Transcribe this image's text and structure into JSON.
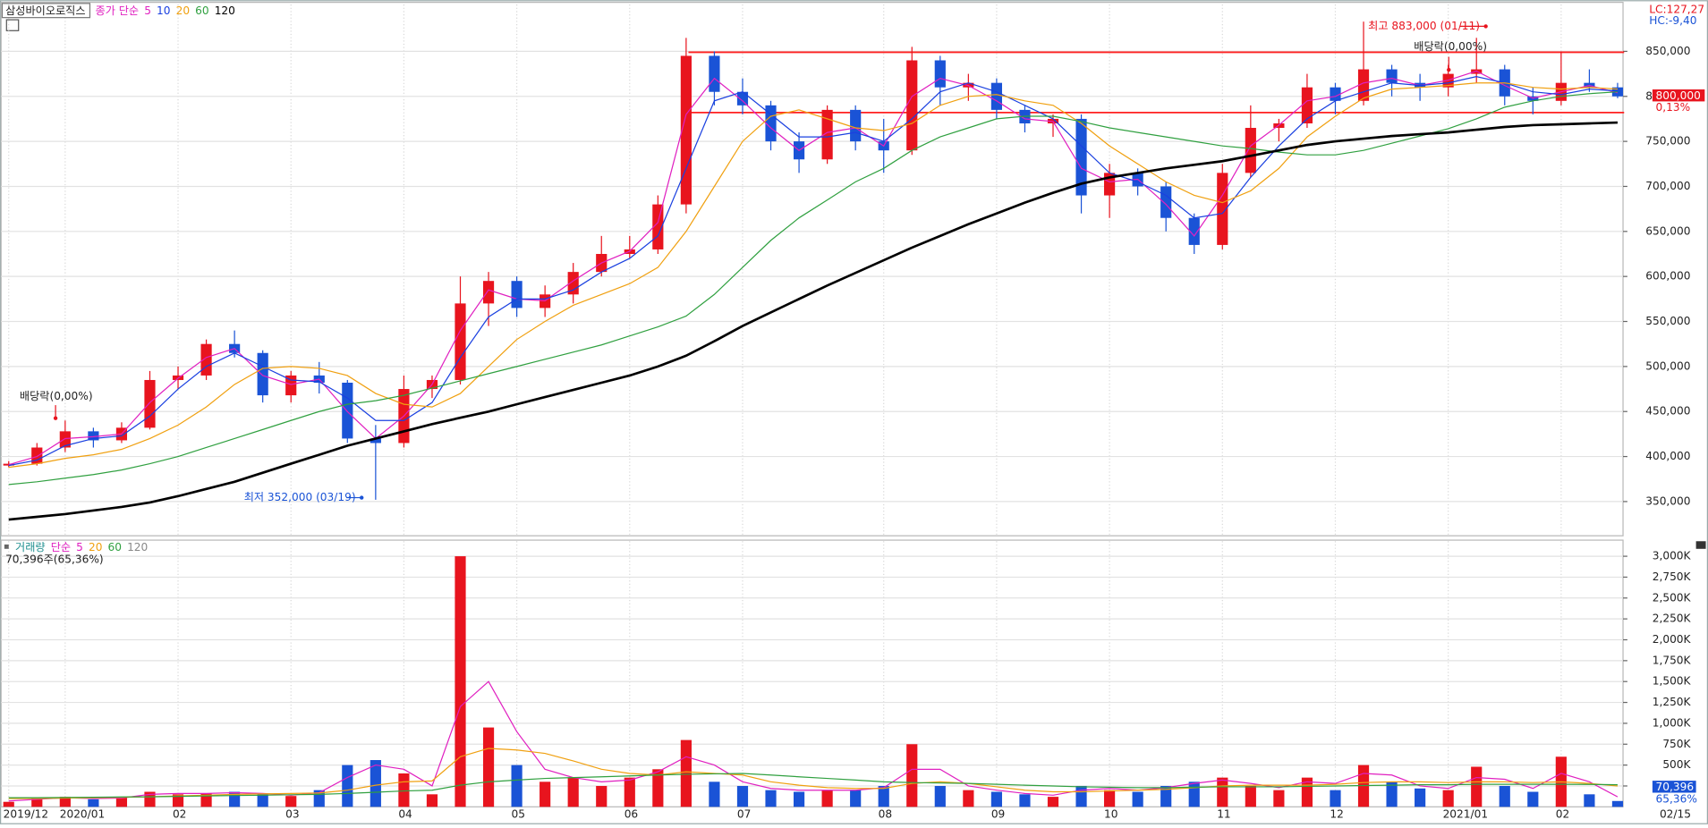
{
  "chart_data": [
    {
      "type": "candlestick",
      "title": "삼성바이오로직스",
      "legend_prefix": "종가 단순",
      "up_color": "#e8141e",
      "down_color": "#1a53d6",
      "open": [
        390000,
        392000,
        410000,
        428000,
        418000,
        432000,
        485000,
        490000,
        525000,
        515000,
        468000,
        490000,
        482000,
        420000,
        415000,
        475000,
        485000,
        570000,
        595000,
        565000,
        580000,
        605000,
        625000,
        630000,
        680000,
        845000,
        805000,
        790000,
        750000,
        730000,
        785000,
        750000,
        740000,
        840000,
        810000,
        815000,
        785000,
        770000,
        775000,
        690000,
        715000,
        700000,
        665000,
        635000,
        715000,
        765000,
        770000,
        810000,
        795000,
        830000,
        815000,
        810000,
        825000,
        830000,
        800000,
        795000,
        815000,
        810000
      ],
      "high": [
        395000,
        415000,
        440000,
        432000,
        438000,
        495000,
        500000,
        530000,
        540000,
        518000,
        495000,
        505000,
        485000,
        435000,
        490000,
        490000,
        600000,
        605000,
        600000,
        590000,
        615000,
        645000,
        645000,
        690000,
        865000,
        850000,
        820000,
        795000,
        760000,
        790000,
        790000,
        775000,
        855000,
        845000,
        825000,
        820000,
        790000,
        780000,
        780000,
        725000,
        720000,
        705000,
        670000,
        725000,
        790000,
        775000,
        825000,
        815000,
        883000,
        835000,
        825000,
        835000,
        865000,
        835000,
        810000,
        850000,
        830000,
        815000
      ],
      "low": [
        388000,
        390000,
        405000,
        410000,
        415000,
        430000,
        475000,
        485000,
        510000,
        460000,
        460000,
        470000,
        415000,
        352000,
        410000,
        465000,
        480000,
        545000,
        555000,
        555000,
        570000,
        600000,
        620000,
        625000,
        670000,
        790000,
        780000,
        740000,
        715000,
        725000,
        740000,
        715000,
        735000,
        790000,
        795000,
        775000,
        760000,
        755000,
        670000,
        665000,
        690000,
        650000,
        625000,
        630000,
        710000,
        750000,
        765000,
        780000,
        790000,
        800000,
        795000,
        800000,
        815000,
        790000,
        780000,
        790000,
        805000,
        798000
      ],
      "close": [
        392000,
        410000,
        428000,
        418000,
        432000,
        485000,
        490000,
        525000,
        515000,
        468000,
        490000,
        482000,
        420000,
        415000,
        475000,
        485000,
        570000,
        595000,
        565000,
        580000,
        605000,
        625000,
        630000,
        680000,
        845000,
        805000,
        790000,
        750000,
        730000,
        785000,
        750000,
        740000,
        840000,
        810000,
        815000,
        785000,
        770000,
        775000,
        690000,
        715000,
        700000,
        665000,
        635000,
        715000,
        765000,
        770000,
        810000,
        795000,
        830000,
        815000,
        810000,
        825000,
        830000,
        800000,
        795000,
        815000,
        810000,
        800000
      ],
      "series": [
        {
          "name": "5",
          "color": "#e020c0",
          "values": [
            391000,
            400000,
            420000,
            422000,
            425000,
            460000,
            487000,
            510000,
            520000,
            490000,
            480000,
            486000,
            450000,
            420000,
            445000,
            480000,
            540000,
            585000,
            575000,
            573000,
            595000,
            615000,
            628000,
            660000,
            780000,
            820000,
            795000,
            765000,
            740000,
            760000,
            765000,
            745000,
            800000,
            820000,
            812000,
            795000,
            775000,
            772000,
            720000,
            705000,
            708000,
            680000,
            645000,
            690000,
            745000,
            768000,
            795000,
            800000,
            815000,
            820000,
            812000,
            818000,
            828000,
            812000,
            798000,
            805000,
            812000,
            804000
          ]
        },
        {
          "name": "10",
          "color": "#1a40e0",
          "values": [
            390000,
            396000,
            412000,
            420000,
            423000,
            445000,
            475000,
            500000,
            515000,
            500000,
            485000,
            483000,
            465000,
            440000,
            440000,
            460000,
            510000,
            555000,
            575000,
            575000,
            585000,
            605000,
            620000,
            645000,
            720000,
            795000,
            805000,
            780000,
            755000,
            755000,
            760000,
            750000,
            775000,
            805000,
            815000,
            805000,
            790000,
            775000,
            745000,
            715000,
            705000,
            690000,
            665000,
            670000,
            710000,
            745000,
            775000,
            795000,
            805000,
            815000,
            812000,
            815000,
            822000,
            815000,
            805000,
            802000,
            808000,
            806000
          ]
        },
        {
          "name": "20",
          "color": "#f0a010",
          "values": [
            388000,
            392000,
            398000,
            402000,
            408000,
            420000,
            435000,
            455000,
            480000,
            498000,
            500000,
            498000,
            490000,
            470000,
            458000,
            455000,
            470000,
            500000,
            530000,
            550000,
            568000,
            580000,
            592000,
            610000,
            650000,
            700000,
            750000,
            778000,
            785000,
            775000,
            765000,
            762000,
            770000,
            790000,
            800000,
            802000,
            795000,
            790000,
            770000,
            745000,
            725000,
            705000,
            690000,
            682000,
            695000,
            720000,
            755000,
            778000,
            798000,
            808000,
            810000,
            812000,
            815000,
            815000,
            810000,
            808000,
            810000,
            808000
          ]
        },
        {
          "name": "60",
          "color": "#30a040",
          "values": [
            369000,
            372000,
            376000,
            380000,
            385000,
            392000,
            400000,
            410000,
            420000,
            430000,
            440000,
            450000,
            458000,
            462000,
            468000,
            476000,
            484000,
            492000,
            500000,
            508000,
            516000,
            524000,
            534000,
            544000,
            556000,
            580000,
            610000,
            640000,
            665000,
            685000,
            705000,
            720000,
            740000,
            755000,
            765000,
            775000,
            778000,
            778000,
            772000,
            765000,
            760000,
            755000,
            750000,
            745000,
            742000,
            738000,
            735000,
            735000,
            740000,
            748000,
            756000,
            764000,
            775000,
            788000,
            795000,
            800000,
            803000,
            805000
          ]
        },
        {
          "name": "120",
          "color": "#000000",
          "values": [
            330000,
            333000,
            336000,
            340000,
            344000,
            349000,
            356000,
            364000,
            372000,
            382000,
            392000,
            402000,
            412000,
            420000,
            428000,
            436000,
            443000,
            450000,
            458000,
            466000,
            474000,
            482000,
            490000,
            500000,
            512000,
            528000,
            545000,
            560000,
            575000,
            590000,
            604000,
            618000,
            632000,
            645000,
            658000,
            670000,
            682000,
            693000,
            703000,
            710000,
            715000,
            720000,
            724000,
            728000,
            734000,
            740000,
            746000,
            750000,
            753000,
            756000,
            758000,
            760000,
            763000,
            766000,
            768000,
            769000,
            770000,
            771000
          ]
        }
      ],
      "hlines": [
        849000,
        782000
      ],
      "hline_color": "#ff2020",
      "ylim": [
        312000,
        902000
      ],
      "yticks": [
        {
          "value": 350000,
          "label": "350,000"
        },
        {
          "value": 400000,
          "label": "400,000"
        },
        {
          "value": 450000,
          "label": "450,000"
        },
        {
          "value": 500000,
          "label": "500,000"
        },
        {
          "value": 550000,
          "label": "550,000"
        },
        {
          "value": 600000,
          "label": "600,000"
        },
        {
          "value": 650000,
          "label": "650,000"
        },
        {
          "value": 700000,
          "label": "700,000"
        },
        {
          "value": 750000,
          "label": "750,000"
        },
        {
          "value": 800000,
          "label": "800,000"
        },
        {
          "value": 850000,
          "label": "850,000"
        }
      ],
      "grid": true,
      "annotations": [
        "배당락(0,00%)",
        "최저 352,000 (03/19)",
        "최고 883,000 (01/11)",
        "배당락(0,00%)"
      ],
      "side_labels": [
        "LC:127,27",
        "HC:-9,40",
        "800,000",
        "0,13%"
      ]
    },
    {
      "type": "bar",
      "legend_prefix": "거래량",
      "legend_label": "단순",
      "legend_extra": "120",
      "info": "70,396주(65,36%)",
      "categories": [
        "2019/12",
        null,
        "2020/01",
        null,
        null,
        null,
        "02",
        null,
        null,
        null,
        "03",
        null,
        null,
        null,
        "04",
        null,
        null,
        null,
        "05",
        null,
        null,
        null,
        "06",
        null,
        null,
        null,
        "07",
        null,
        null,
        null,
        null,
        "08",
        null,
        null,
        null,
        "09",
        null,
        null,
        null,
        "10",
        null,
        null,
        null,
        "11",
        null,
        null,
        null,
        "12",
        null,
        null,
        null,
        "2021/01",
        null,
        null,
        null,
        "02",
        null,
        "02/15"
      ],
      "values": [
        60,
        100,
        120,
        90,
        110,
        180,
        150,
        160,
        180,
        150,
        130,
        200,
        500,
        560,
        400,
        150,
        3000,
        950,
        500,
        300,
        350,
        250,
        350,
        450,
        800,
        300,
        250,
        200,
        180,
        200,
        200,
        250,
        750,
        250,
        200,
        180,
        150,
        120,
        250,
        200,
        180,
        250,
        300,
        350,
        250,
        200,
        350,
        200,
        500,
        300,
        220,
        200,
        480,
        250,
        180,
        600,
        150,
        70
      ],
      "series": [
        {
          "name": "5",
          "color": "#e020c0",
          "values": [
            70,
            90,
            110,
            100,
            105,
            150,
            160,
            160,
            170,
            160,
            140,
            170,
            350,
            500,
            450,
            250,
            1200,
            1500,
            900,
            450,
            350,
            300,
            320,
            420,
            600,
            500,
            300,
            220,
            200,
            200,
            200,
            230,
            450,
            450,
            250,
            200,
            160,
            140,
            200,
            220,
            200,
            230,
            280,
            320,
            280,
            230,
            300,
            280,
            400,
            380,
            250,
            220,
            350,
            330,
            220,
            400,
            300,
            120
          ]
        },
        {
          "name": "20",
          "color": "#f0a010",
          "values": [
            100,
            100,
            105,
            110,
            115,
            120,
            130,
            140,
            150,
            155,
            160,
            165,
            200,
            260,
            300,
            310,
            600,
            700,
            680,
            640,
            550,
            450,
            400,
            380,
            420,
            400,
            380,
            300,
            260,
            230,
            220,
            220,
            280,
            300,
            280,
            240,
            200,
            180,
            180,
            190,
            200,
            210,
            230,
            250,
            260,
            260,
            260,
            270,
            290,
            300,
            300,
            290,
            300,
            300,
            290,
            300,
            280,
            250
          ]
        },
        {
          "name": "60",
          "color": "#30a040",
          "values": [
            110,
            110,
            112,
            115,
            118,
            120,
            125,
            130,
            135,
            140,
            145,
            150,
            160,
            175,
            190,
            200,
            260,
            300,
            320,
            340,
            350,
            360,
            370,
            380,
            390,
            395,
            400,
            380,
            360,
            340,
            320,
            300,
            290,
            285,
            280,
            270,
            260,
            250,
            240,
            235,
            230,
            230,
            235,
            240,
            240,
            240,
            245,
            250,
            255,
            260,
            265,
            265,
            270,
            270,
            270,
            270,
            268,
            265
          ]
        }
      ],
      "ylim": [
        0,
        3180
      ],
      "yticks": [
        {
          "value": 250,
          "label": "250K"
        },
        {
          "value": 500,
          "label": "500K"
        },
        {
          "value": 750,
          "label": "750K"
        },
        {
          "value": 1000,
          "label": "1,000K"
        },
        {
          "value": 1250,
          "label": "1,250K"
        },
        {
          "value": 1500,
          "label": "1,500K"
        },
        {
          "value": 1750,
          "label": "1,750K"
        },
        {
          "value": 2000,
          "label": "2,000K"
        },
        {
          "value": 2250,
          "label": "2,250K"
        },
        {
          "value": 2500,
          "label": "2,500K"
        },
        {
          "value": 2750,
          "label": "2,750K"
        },
        {
          "value": 3000,
          "label": "3,000K"
        }
      ],
      "grid": true,
      "side_labels": [
        "70,396",
        "65,36%"
      ]
    }
  ]
}
